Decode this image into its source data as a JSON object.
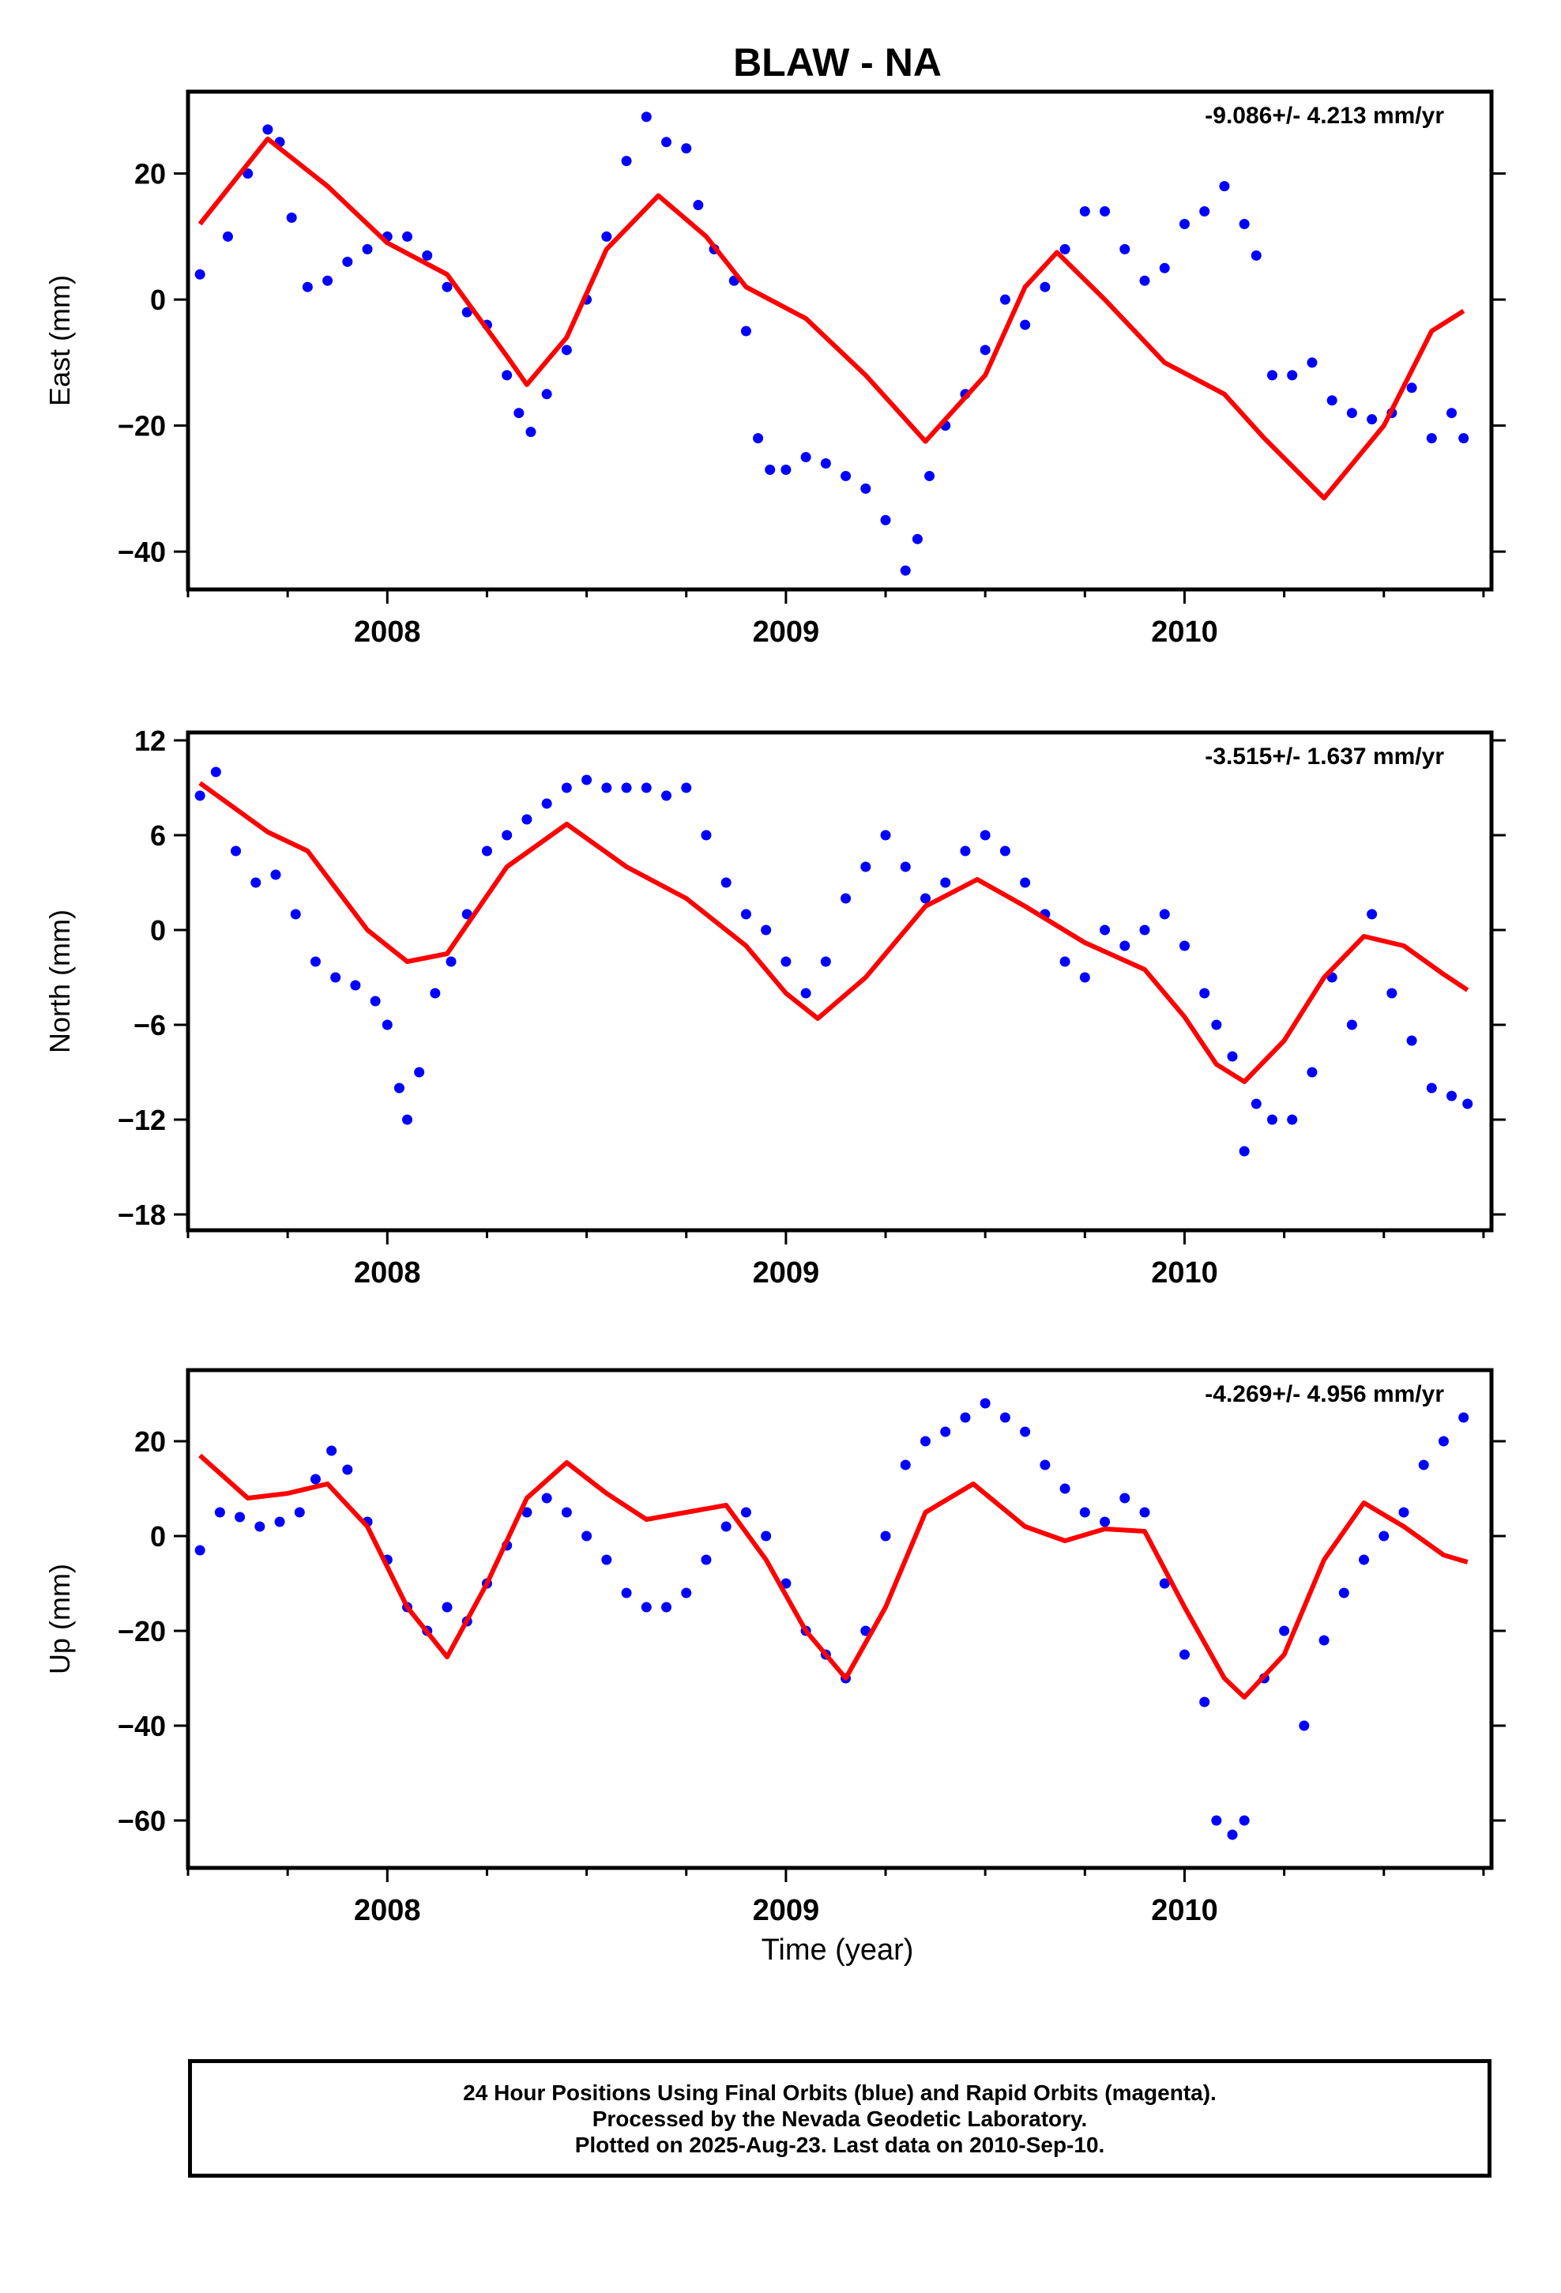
{
  "title": "BLAW - NA",
  "xlabel": "Time (year)",
  "caption": {
    "line1": "24 Hour Positions Using Final Orbits (blue) and Rapid Orbits (magenta).",
    "line2": "Processed by the Nevada Geodetic Laboratory.",
    "line3": "Plotted on 2025-Aug-23. Last data on 2010-Sep-10."
  },
  "colors": {
    "points": "#0000ff",
    "model": "#ff0000",
    "frame": "#000000"
  },
  "chart_data": [
    {
      "type": "scatter",
      "name": "east",
      "ylabel": "East (mm)",
      "rate_label": "-9.086+/- 4.213 mm/yr",
      "xlim": [
        2007.5,
        2010.77
      ],
      "ylim": [
        -46,
        33
      ],
      "xticks": [
        2008,
        2009,
        2010
      ],
      "yticks": [
        -40,
        -20,
        0,
        20
      ],
      "points": [
        [
          2007.53,
          4
        ],
        [
          2007.6,
          10
        ],
        [
          2007.65,
          20
        ],
        [
          2007.7,
          27
        ],
        [
          2007.73,
          25
        ],
        [
          2007.76,
          13
        ],
        [
          2007.8,
          2
        ],
        [
          2007.85,
          3
        ],
        [
          2007.9,
          6
        ],
        [
          2007.95,
          8
        ],
        [
          2008.0,
          10
        ],
        [
          2008.05,
          10
        ],
        [
          2008.1,
          7
        ],
        [
          2008.15,
          2
        ],
        [
          2008.2,
          -2
        ],
        [
          2008.25,
          -4
        ],
        [
          2008.3,
          -12
        ],
        [
          2008.33,
          -18
        ],
        [
          2008.36,
          -21
        ],
        [
          2008.4,
          -15
        ],
        [
          2008.45,
          -8
        ],
        [
          2008.5,
          0
        ],
        [
          2008.55,
          10
        ],
        [
          2008.6,
          22
        ],
        [
          2008.65,
          29
        ],
        [
          2008.7,
          25
        ],
        [
          2008.75,
          24
        ],
        [
          2008.78,
          15
        ],
        [
          2008.82,
          8
        ],
        [
          2008.87,
          3
        ],
        [
          2008.9,
          -5
        ],
        [
          2008.93,
          -22
        ],
        [
          2008.96,
          -27
        ],
        [
          2009.0,
          -27
        ],
        [
          2009.05,
          -25
        ],
        [
          2009.1,
          -26
        ],
        [
          2009.15,
          -28
        ],
        [
          2009.2,
          -30
        ],
        [
          2009.25,
          -35
        ],
        [
          2009.3,
          -43
        ],
        [
          2009.33,
          -38
        ],
        [
          2009.36,
          -28
        ],
        [
          2009.4,
          -20
        ],
        [
          2009.45,
          -15
        ],
        [
          2009.5,
          -8
        ],
        [
          2009.55,
          0
        ],
        [
          2009.6,
          -4
        ],
        [
          2009.65,
          2
        ],
        [
          2009.7,
          8
        ],
        [
          2009.75,
          14
        ],
        [
          2009.8,
          14
        ],
        [
          2009.85,
          8
        ],
        [
          2009.9,
          3
        ],
        [
          2009.95,
          5
        ],
        [
          2010.0,
          12
        ],
        [
          2010.05,
          14
        ],
        [
          2010.1,
          18
        ],
        [
          2010.15,
          12
        ],
        [
          2010.18,
          7
        ],
        [
          2010.22,
          -12
        ],
        [
          2010.27,
          -12
        ],
        [
          2010.32,
          -10
        ],
        [
          2010.37,
          -16
        ],
        [
          2010.42,
          -18
        ],
        [
          2010.47,
          -19
        ],
        [
          2010.52,
          -18
        ],
        [
          2010.57,
          -14
        ],
        [
          2010.62,
          -22
        ],
        [
          2010.67,
          -18
        ],
        [
          2010.7,
          -22
        ]
      ],
      "model": [
        [
          2007.53,
          12
        ],
        [
          2007.7,
          25.5
        ],
        [
          2007.85,
          18
        ],
        [
          2008.0,
          9
        ],
        [
          2008.15,
          4
        ],
        [
          2008.3,
          -9
        ],
        [
          2008.35,
          -13.5
        ],
        [
          2008.45,
          -6
        ],
        [
          2008.55,
          8
        ],
        [
          2008.68,
          16.5
        ],
        [
          2008.8,
          10
        ],
        [
          2008.9,
          2
        ],
        [
          2009.05,
          -3
        ],
        [
          2009.2,
          -12
        ],
        [
          2009.35,
          -22.5
        ],
        [
          2009.5,
          -12
        ],
        [
          2009.6,
          2
        ],
        [
          2009.68,
          7.5
        ],
        [
          2009.8,
          0
        ],
        [
          2009.95,
          -10
        ],
        [
          2010.1,
          -15
        ],
        [
          2010.2,
          -22
        ],
        [
          2010.35,
          -31.5
        ],
        [
          2010.5,
          -20
        ],
        [
          2010.62,
          -5
        ],
        [
          2010.7,
          -1.8
        ]
      ]
    },
    {
      "type": "scatter",
      "name": "north",
      "ylabel": "North (mm)",
      "rate_label": "-3.515+/- 1.637 mm/yr",
      "xlim": [
        2007.5,
        2010.77
      ],
      "ylim": [
        -19,
        12.5
      ],
      "xticks": [
        2008,
        2009,
        2010
      ],
      "yticks": [
        -18,
        -12,
        -6,
        0,
        6,
        12
      ],
      "points": [
        [
          2007.53,
          8.5
        ],
        [
          2007.57,
          10
        ],
        [
          2007.62,
          5
        ],
        [
          2007.67,
          3
        ],
        [
          2007.72,
          3.5
        ],
        [
          2007.77,
          1
        ],
        [
          2007.82,
          -2
        ],
        [
          2007.87,
          -3
        ],
        [
          2007.92,
          -3.5
        ],
        [
          2007.97,
          -4.5
        ],
        [
          2008.0,
          -6
        ],
        [
          2008.03,
          -10
        ],
        [
          2008.05,
          -12
        ],
        [
          2008.08,
          -9
        ],
        [
          2008.12,
          -4
        ],
        [
          2008.16,
          -2
        ],
        [
          2008.2,
          1
        ],
        [
          2008.25,
          5
        ],
        [
          2008.3,
          6
        ],
        [
          2008.35,
          7
        ],
        [
          2008.4,
          8
        ],
        [
          2008.45,
          9
        ],
        [
          2008.5,
          9.5
        ],
        [
          2008.55,
          9
        ],
        [
          2008.6,
          9
        ],
        [
          2008.65,
          9
        ],
        [
          2008.7,
          8.5
        ],
        [
          2008.75,
          9
        ],
        [
          2008.8,
          6
        ],
        [
          2008.85,
          3
        ],
        [
          2008.9,
          1
        ],
        [
          2008.95,
          0
        ],
        [
          2009.0,
          -2
        ],
        [
          2009.05,
          -4
        ],
        [
          2009.1,
          -2
        ],
        [
          2009.15,
          2
        ],
        [
          2009.2,
          4
        ],
        [
          2009.25,
          6
        ],
        [
          2009.3,
          4
        ],
        [
          2009.35,
          2
        ],
        [
          2009.4,
          3
        ],
        [
          2009.45,
          5
        ],
        [
          2009.5,
          6
        ],
        [
          2009.55,
          5
        ],
        [
          2009.6,
          3
        ],
        [
          2009.65,
          1
        ],
        [
          2009.7,
          -2
        ],
        [
          2009.75,
          -3
        ],
        [
          2009.8,
          0
        ],
        [
          2009.85,
          -1
        ],
        [
          2009.9,
          0
        ],
        [
          2009.95,
          1
        ],
        [
          2010.0,
          -1
        ],
        [
          2010.05,
          -4
        ],
        [
          2010.08,
          -6
        ],
        [
          2010.12,
          -8
        ],
        [
          2010.15,
          -14
        ],
        [
          2010.18,
          -11
        ],
        [
          2010.22,
          -12
        ],
        [
          2010.27,
          -12
        ],
        [
          2010.32,
          -9
        ],
        [
          2010.37,
          -3
        ],
        [
          2010.42,
          -6
        ],
        [
          2010.47,
          1
        ],
        [
          2010.52,
          -4
        ],
        [
          2010.57,
          -7
        ],
        [
          2010.62,
          -10
        ],
        [
          2010.67,
          -10.5
        ],
        [
          2010.71,
          -11
        ]
      ],
      "model": [
        [
          2007.53,
          9.3
        ],
        [
          2007.7,
          6.2
        ],
        [
          2007.8,
          5
        ],
        [
          2007.95,
          0
        ],
        [
          2008.05,
          -2
        ],
        [
          2008.15,
          -1.5
        ],
        [
          2008.3,
          4
        ],
        [
          2008.45,
          6.7
        ],
        [
          2008.6,
          4
        ],
        [
          2008.75,
          2
        ],
        [
          2008.9,
          -1
        ],
        [
          2009.0,
          -4
        ],
        [
          2009.08,
          -5.6
        ],
        [
          2009.2,
          -3
        ],
        [
          2009.35,
          1.5
        ],
        [
          2009.48,
          3.2
        ],
        [
          2009.6,
          1.5
        ],
        [
          2009.75,
          -0.8
        ],
        [
          2009.9,
          -2.5
        ],
        [
          2010.0,
          -5.5
        ],
        [
          2010.08,
          -8.5
        ],
        [
          2010.15,
          -9.6
        ],
        [
          2010.25,
          -7
        ],
        [
          2010.35,
          -3
        ],
        [
          2010.45,
          -0.4
        ],
        [
          2010.55,
          -1
        ],
        [
          2010.65,
          -2.8
        ],
        [
          2010.71,
          -3.8
        ]
      ]
    },
    {
      "type": "scatter",
      "name": "up",
      "ylabel": "Up (mm)",
      "rate_label": "-4.269+/- 4.956 mm/yr",
      "xlim": [
        2007.5,
        2010.77
      ],
      "ylim": [
        -70,
        35
      ],
      "xticks": [
        2008,
        2009,
        2010
      ],
      "yticks": [
        -60,
        -40,
        -20,
        0,
        20
      ],
      "points": [
        [
          2007.53,
          -3
        ],
        [
          2007.58,
          5
        ],
        [
          2007.63,
          4
        ],
        [
          2007.68,
          2
        ],
        [
          2007.73,
          3
        ],
        [
          2007.78,
          5
        ],
        [
          2007.82,
          12
        ],
        [
          2007.86,
          18
        ],
        [
          2007.9,
          14
        ],
        [
          2007.95,
          3
        ],
        [
          2008.0,
          -5
        ],
        [
          2008.05,
          -15
        ],
        [
          2008.1,
          -20
        ],
        [
          2008.15,
          -15
        ],
        [
          2008.2,
          -18
        ],
        [
          2008.25,
          -10
        ],
        [
          2008.3,
          -2
        ],
        [
          2008.35,
          5
        ],
        [
          2008.4,
          8
        ],
        [
          2008.45,
          5
        ],
        [
          2008.5,
          0
        ],
        [
          2008.55,
          -5
        ],
        [
          2008.6,
          -12
        ],
        [
          2008.65,
          -15
        ],
        [
          2008.7,
          -15
        ],
        [
          2008.75,
          -12
        ],
        [
          2008.8,
          -5
        ],
        [
          2008.85,
          2
        ],
        [
          2008.9,
          5
        ],
        [
          2008.95,
          0
        ],
        [
          2009.0,
          -10
        ],
        [
          2009.05,
          -20
        ],
        [
          2009.1,
          -25
        ],
        [
          2009.15,
          -30
        ],
        [
          2009.2,
          -20
        ],
        [
          2009.25,
          0
        ],
        [
          2009.3,
          15
        ],
        [
          2009.35,
          20
        ],
        [
          2009.4,
          22
        ],
        [
          2009.45,
          25
        ],
        [
          2009.5,
          28
        ],
        [
          2009.55,
          25
        ],
        [
          2009.6,
          22
        ],
        [
          2009.65,
          15
        ],
        [
          2009.7,
          10
        ],
        [
          2009.75,
          5
        ],
        [
          2009.8,
          3
        ],
        [
          2009.85,
          8
        ],
        [
          2009.9,
          5
        ],
        [
          2009.95,
          -10
        ],
        [
          2010.0,
          -25
        ],
        [
          2010.05,
          -35
        ],
        [
          2010.08,
          -60
        ],
        [
          2010.12,
          -63
        ],
        [
          2010.15,
          -60
        ],
        [
          2010.2,
          -30
        ],
        [
          2010.25,
          -20
        ],
        [
          2010.3,
          -40
        ],
        [
          2010.35,
          -22
        ],
        [
          2010.4,
          -12
        ],
        [
          2010.45,
          -5
        ],
        [
          2010.5,
          0
        ],
        [
          2010.55,
          5
        ],
        [
          2010.6,
          15
        ],
        [
          2010.65,
          20
        ],
        [
          2010.7,
          25
        ]
      ],
      "model": [
        [
          2007.53,
          17
        ],
        [
          2007.65,
          8
        ],
        [
          2007.75,
          9
        ],
        [
          2007.85,
          11
        ],
        [
          2007.95,
          2
        ],
        [
          2008.05,
          -15
        ],
        [
          2008.15,
          -25.5
        ],
        [
          2008.25,
          -10
        ],
        [
          2008.35,
          8
        ],
        [
          2008.45,
          15.5
        ],
        [
          2008.55,
          9
        ],
        [
          2008.65,
          3.5
        ],
        [
          2008.75,
          5
        ],
        [
          2008.85,
          6.5
        ],
        [
          2008.95,
          -5
        ],
        [
          2009.05,
          -20
        ],
        [
          2009.15,
          -30
        ],
        [
          2009.25,
          -15
        ],
        [
          2009.35,
          5
        ],
        [
          2009.47,
          11
        ],
        [
          2009.6,
          2
        ],
        [
          2009.7,
          -1
        ],
        [
          2009.8,
          1.5
        ],
        [
          2009.9,
          1
        ],
        [
          2010.0,
          -15
        ],
        [
          2010.1,
          -30
        ],
        [
          2010.15,
          -34
        ],
        [
          2010.25,
          -25
        ],
        [
          2010.35,
          -5
        ],
        [
          2010.45,
          7
        ],
        [
          2010.55,
          2
        ],
        [
          2010.65,
          -4
        ],
        [
          2010.71,
          -5.5
        ]
      ]
    }
  ]
}
